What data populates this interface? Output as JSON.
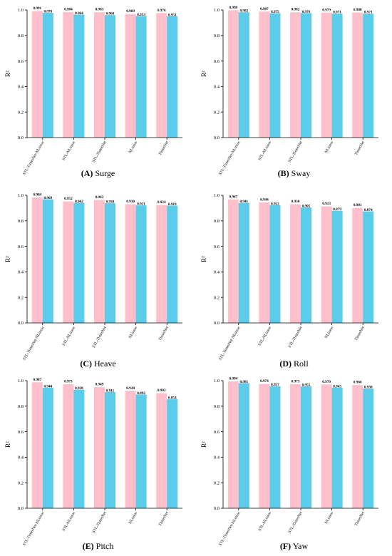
{
  "colors": {
    "series_a": "#ffbfcb",
    "series_b": "#5bcdea",
    "axis": "#000000"
  },
  "chart_data": [
    {
      "type": "bar",
      "panel_letter": "(A)",
      "panel_title": "Surge",
      "categories": [
        "STL-TimesNet-NLinear",
        "STL-NLinear",
        "STL-TimesNet",
        "NLinear",
        "TimesNet"
      ],
      "series": [
        {
          "values": [
            0.991,
            0.984,
            0.983,
            0.969,
            0.976
          ]
        },
        {
          "values": [
            0.978,
            0.964,
            0.96,
            0.953,
            0.951
          ]
        }
      ],
      "value_labels": [
        [
          "0.991",
          "0.984",
          "0.983",
          "0.969",
          "0.976"
        ],
        [
          "0.978",
          "0.964",
          "0.960",
          "0.953",
          "0.951"
        ]
      ],
      "ylabel": "R²",
      "ylim": [
        0,
        1.0
      ],
      "yticks": [
        0.0,
        0.2,
        0.4,
        0.6,
        0.8,
        1.0
      ],
      "ytick_labels": [
        "0.0",
        "0.2",
        "0.4",
        "0.6",
        "0.8",
        "1.0"
      ],
      "grid": false,
      "legend": "none"
    },
    {
      "type": "bar",
      "panel_letter": "(B)",
      "panel_title": "Sway",
      "categories": [
        "STL-TimesNet-NLinear",
        "STL-NLinear",
        "STL-TimesNet",
        "NLinear",
        "TimesNet"
      ],
      "series": [
        {
          "values": [
            0.998,
            0.987,
            0.982,
            0.979,
            0.98
          ]
        },
        {
          "values": [
            0.982,
            0.975,
            0.976,
            0.971,
            0.971
          ]
        }
      ],
      "value_labels": [
        [
          "0.998",
          "0.987",
          "0.982",
          "0.979",
          "0.980"
        ],
        [
          "0.982",
          "0.975",
          "0.976",
          "0.971",
          "0.971"
        ]
      ],
      "ylabel": "R²",
      "ylim": [
        0,
        1.0
      ],
      "yticks": [
        0.0,
        0.2,
        0.4,
        0.6,
        0.8,
        1.0
      ],
      "ytick_labels": [
        "0.0",
        "0.2",
        "0.4",
        "0.6",
        "0.8",
        "1.0"
      ],
      "grid": false,
      "legend": "none"
    },
    {
      "type": "bar",
      "panel_letter": "(C)",
      "panel_title": "Heave",
      "categories": [
        "STL-TimesNet-NLinear",
        "STL-NLinear",
        "STL-TimesNet",
        "NLinear",
        "TimesNet"
      ],
      "series": [
        {
          "values": [
            0.984,
            0.952,
            0.963,
            0.93,
            0.924
          ]
        },
        {
          "values": [
            0.969,
            0.942,
            0.938,
            0.921,
            0.919
          ]
        }
      ],
      "value_labels": [
        [
          "0.984",
          "0.952",
          "0.963",
          "0.930",
          "0.924"
        ],
        [
          "0.969",
          "0.942",
          "0.938",
          "0.921",
          "0.919"
        ]
      ],
      "ylabel": "R²",
      "ylim": [
        0,
        1.0
      ],
      "yticks": [
        0.0,
        0.2,
        0.4,
        0.6,
        0.8,
        1.0
      ],
      "ytick_labels": [
        "0.0",
        "0.2",
        "0.4",
        "0.6",
        "0.8",
        "1.0"
      ],
      "grid": false,
      "legend": "none"
    },
    {
      "type": "bar",
      "panel_letter": "(D)",
      "panel_title": "Roll",
      "categories": [
        "STL-TimesNet-NLinear",
        "STL-NLinear",
        "STL-TimesNet",
        "NLinear",
        "TimesNet"
      ],
      "series": [
        {
          "values": [
            0.967,
            0.944,
            0.93,
            0.913,
            0.901
          ]
        },
        {
          "values": [
            0.941,
            0.922,
            0.905,
            0.879,
            0.874
          ]
        }
      ],
      "value_labels": [
        [
          "0.967",
          "0.944",
          "0.930",
          "0.913",
          "0.901"
        ],
        [
          "0.941",
          "0.922",
          "0.905",
          "0.879",
          "0.874"
        ]
      ],
      "ylabel": "R²",
      "ylim": [
        0,
        1.0
      ],
      "yticks": [
        0.0,
        0.2,
        0.4,
        0.6,
        0.8,
        1.0
      ],
      "ytick_labels": [
        "0.0",
        "0.2",
        "0.4",
        "0.6",
        "0.8",
        "1.0"
      ],
      "grid": false,
      "legend": "none"
    },
    {
      "type": "bar",
      "panel_letter": "(E)",
      "panel_title": "Pitch",
      "categories": [
        "STL-TimesNet-NLinear",
        "STL-NLinear",
        "STL-TimesNet",
        "NLinear",
        "TimesNet"
      ],
      "series": [
        {
          "values": [
            0.987,
            0.973,
            0.949,
            0.92,
            0.902
          ]
        },
        {
          "values": [
            0.944,
            0.93,
            0.911,
            0.892,
            0.854
          ]
        }
      ],
      "value_labels": [
        [
          "0.987",
          "0.973",
          "0.949",
          "0.920",
          "0.902"
        ],
        [
          "0.944",
          "0.930",
          "0.911",
          "0.892",
          "0.854"
        ]
      ],
      "ylabel": "R²",
      "ylim": [
        0,
        1.0
      ],
      "yticks": [
        0.0,
        0.2,
        0.4,
        0.6,
        0.8,
        1.0
      ],
      "ytick_labels": [
        "0.0",
        "0.2",
        "0.4",
        "0.6",
        "0.8",
        "1.0"
      ],
      "grid": false,
      "legend": "none"
    },
    {
      "type": "bar",
      "panel_letter": "(F)",
      "panel_title": "Yaw",
      "categories": [
        "STL-TimesNet-NLinear",
        "STL-NLinear",
        "STL-TimesNet",
        "NLinear",
        "TimesNet"
      ],
      "series": [
        {
          "values": [
            0.994,
            0.974,
            0.973,
            0.97,
            0.966
          ]
        },
        {
          "values": [
            0.981,
            0.957,
            0.955,
            0.945,
            0.938
          ]
        }
      ],
      "value_labels": [
        [
          "0.994",
          "0.974",
          "0.973",
          "0.970",
          "0.966"
        ],
        [
          "0.981",
          "0.957",
          "0.955",
          "0.945",
          "0.938"
        ]
      ],
      "ylabel": "R²",
      "ylim": [
        0,
        1.0
      ],
      "yticks": [
        0.0,
        0.2,
        0.4,
        0.6,
        0.8,
        1.0
      ],
      "ytick_labels": [
        "0.0",
        "0.2",
        "0.4",
        "0.6",
        "0.8",
        "1.0"
      ],
      "grid": false,
      "legend": "none"
    }
  ]
}
